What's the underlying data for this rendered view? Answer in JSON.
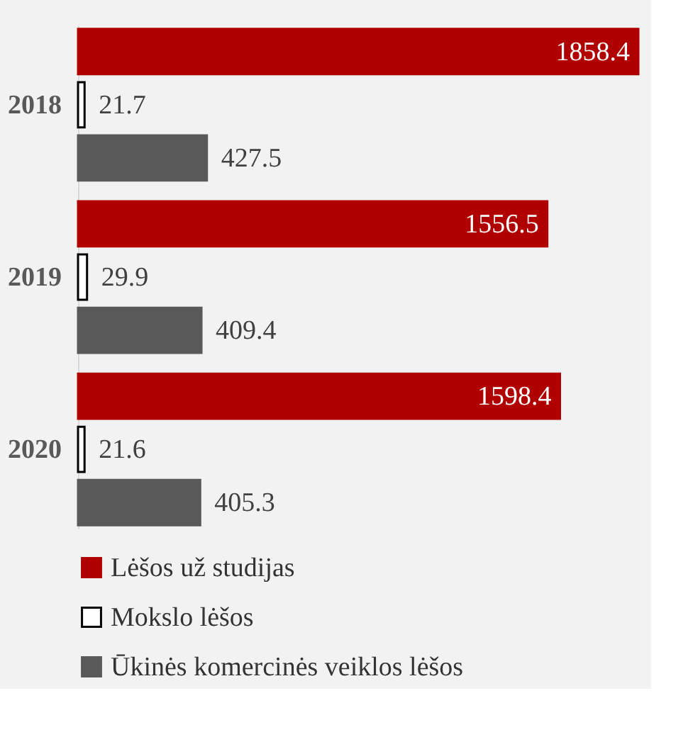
{
  "chart_data": {
    "type": "bar",
    "orientation": "horizontal",
    "categories": [
      "2018",
      "2019",
      "2020"
    ],
    "series": [
      {
        "name": "Lėšos už studijas",
        "color": "#b00000",
        "values": [
          1858.4,
          1556.5,
          1598.4
        ]
      },
      {
        "name": "Mokslo lėšos",
        "color": "#ffffff",
        "values": [
          21.7,
          29.9,
          21.6
        ]
      },
      {
        "name": "Ūkinės komercinės veiklos lėšos",
        "color": "#595959",
        "values": [
          427.5,
          409.4,
          405.3
        ]
      }
    ],
    "data_labels": true,
    "legend": "bottom",
    "grid": false
  }
}
